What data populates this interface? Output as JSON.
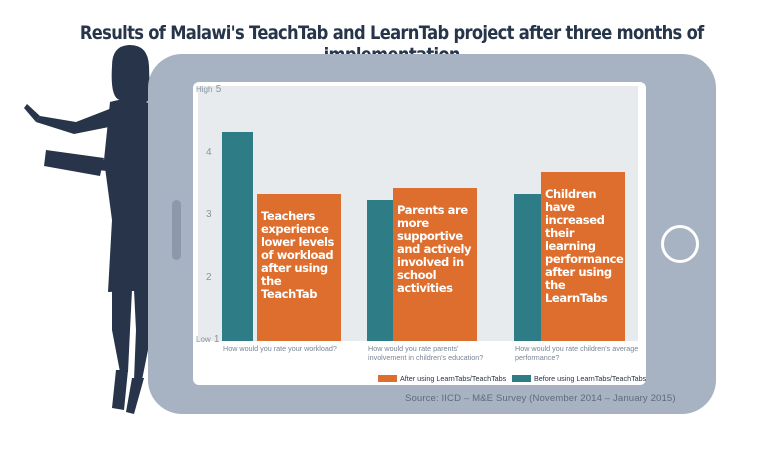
{
  "title": "Results of Malawi's TeachTab and LearnTab project after three months of implementation",
  "source": "Source: IICD – M&E Survey (November 2014 – January 2015)",
  "colors": {
    "before": "#2e7c86",
    "after": "#dd6e2e",
    "tablet": "#a7b3c2",
    "silhouette": "#27344a"
  },
  "y_ticks": [
    {
      "prefix": "Low",
      "value": "1"
    },
    {
      "prefix": "",
      "value": "2"
    },
    {
      "prefix": "",
      "value": "3"
    },
    {
      "prefix": "",
      "value": "4"
    },
    {
      "prefix": "High",
      "value": "5"
    }
  ],
  "bar_texts": [
    "Teachers experience lower levels of workload after using the TeachTab",
    "Parents are more supportive and actively involved in school activities",
    "Children have increased their learning performance after using the LearnTabs"
  ],
  "icons": [
    "woman-silhouette-icon",
    "tablet-home-button-icon"
  ],
  "chart_data": {
    "type": "bar",
    "categories": [
      "How would you rate your workload?",
      "How would you rate parents' involvement in children's education?",
      "How would you rate children's average performance?"
    ],
    "series": [
      {
        "name": "Before using LearnTabs/TeachTabs",
        "values": [
          4.35,
          3.25,
          3.35
        ]
      },
      {
        "name": "After using LearnTabs/TeachTabs",
        "values": [
          3.35,
          3.45,
          3.7
        ]
      }
    ],
    "ylim": [
      1,
      5
    ],
    "yticks": [
      1,
      2,
      3,
      4,
      5
    ],
    "ytick_labels": [
      "Low 1",
      "2",
      "3",
      "4",
      "High 5"
    ],
    "legend": [
      "After using LearnTabs/TeachTabs",
      "Before using LearnTabs/TeachTabs"
    ],
    "legend_position": "bottom-right",
    "grid": false
  }
}
